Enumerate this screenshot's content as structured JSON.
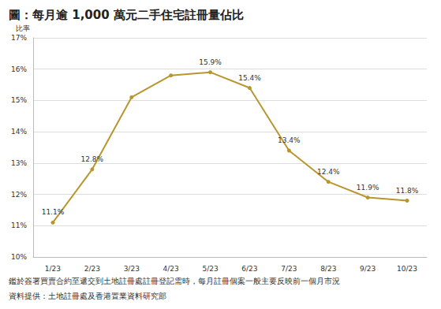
{
  "chart_data": {
    "type": "line",
    "title": "圖：每月逾 1,000 萬元二手住宅註冊量佔比",
    "y_label": "比率",
    "categories": [
      "1/23",
      "2/23",
      "3/23",
      "4/23",
      "5/23",
      "6/23",
      "7/23",
      "8/23",
      "9/23",
      "10/23"
    ],
    "values": [
      11.1,
      12.8,
      15.1,
      15.8,
      15.9,
      15.4,
      13.4,
      12.4,
      11.9,
      11.8
    ],
    "value_labels": [
      "11.1%",
      "12.8%",
      null,
      null,
      "15.9%",
      "15.4%",
      "13.4%",
      "12.4%",
      "11.9%",
      "11.8%"
    ],
    "data_labels": true,
    "color": "#b8962e",
    "marker": "circle",
    "ylim": [
      10,
      17
    ],
    "yticks": [
      {
        "value": 10,
        "label": "10%"
      },
      {
        "value": 11,
        "label": "11%"
      },
      {
        "value": 12,
        "label": "12%"
      },
      {
        "value": 13,
        "label": "13%"
      },
      {
        "value": 14,
        "label": "14%"
      },
      {
        "value": 15,
        "label": "15%"
      },
      {
        "value": 16,
        "label": "16%"
      },
      {
        "value": 17,
        "label": "17%"
      }
    ],
    "grid": true,
    "footnotes": [
      "鑑於簽署買賣合約至遞交到土地註冊處註冊登記需時，每月註冊個案一般主要反映前一個月市況",
      "資料提供：土地註冊處及香港置業資料研究部"
    ]
  }
}
